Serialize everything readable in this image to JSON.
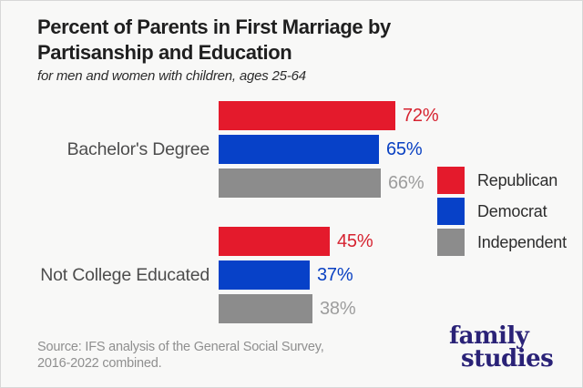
{
  "title": {
    "line1": "Percent of Parents in First Marriage by",
    "line2": "Partisanship and Education",
    "subtitle": "for men and women with children, ages 25-64"
  },
  "chart_data": {
    "type": "bar",
    "orientation": "horizontal",
    "title": "Percent of Parents in First Marriage by Partisanship and Education",
    "subtitle": "for men and women with children, ages 25-64",
    "categories": [
      "Bachelor's Degree",
      "Not College Educated"
    ],
    "series": [
      {
        "name": "Republican",
        "color": "#e41a2c",
        "label_color": "#d62330",
        "values": [
          72,
          45
        ]
      },
      {
        "name": "Democrat",
        "color": "#0741c8",
        "label_color": "#0a41c2",
        "values": [
          65,
          37
        ]
      },
      {
        "name": "Independent",
        "color": "#8c8c8c",
        "label_color": "#9d9d9d",
        "values": [
          66,
          38
        ]
      }
    ],
    "value_suffix": "%",
    "xlim": [
      0,
      100
    ],
    "grid": false,
    "legend_position": "right"
  },
  "source": {
    "line1": "Source: IFS analysis of the General Social Survey,",
    "line2": "2016-2022 combined."
  },
  "logo": {
    "line1": "family",
    "line2": "studies",
    "color": "#2a2277"
  }
}
